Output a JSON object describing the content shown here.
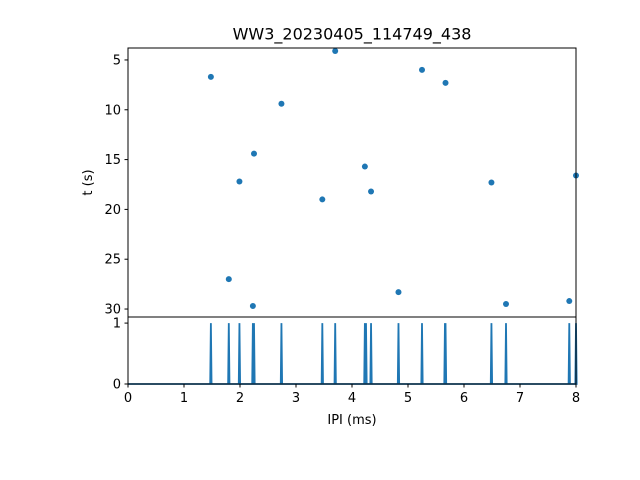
{
  "chart_data": [
    {
      "type": "scatter",
      "title": "WW3_20230405_114749_438",
      "xlabel": "",
      "ylabel": "t (s)",
      "xlim": [
        0,
        8
      ],
      "ylim": [
        30.8,
        3.8
      ],
      "y_inverted": true,
      "yticks": [
        5,
        10,
        15,
        20,
        25,
        30
      ],
      "color": "#1f77b4",
      "points": [
        {
          "x": 1.48,
          "y": 6.7
        },
        {
          "x": 3.7,
          "y": 4.1
        },
        {
          "x": 5.25,
          "y": 6.0
        },
        {
          "x": 5.67,
          "y": 7.3
        },
        {
          "x": 2.74,
          "y": 9.4
        },
        {
          "x": 2.25,
          "y": 14.4
        },
        {
          "x": 4.23,
          "y": 15.7
        },
        {
          "x": 1.99,
          "y": 17.2
        },
        {
          "x": 6.49,
          "y": 17.3
        },
        {
          "x": 8.0,
          "y": 16.6
        },
        {
          "x": 4.34,
          "y": 18.2
        },
        {
          "x": 3.47,
          "y": 19.0
        },
        {
          "x": 1.8,
          "y": 27.0
        },
        {
          "x": 4.83,
          "y": 28.3
        },
        {
          "x": 2.23,
          "y": 29.7
        },
        {
          "x": 6.75,
          "y": 29.5
        },
        {
          "x": 7.88,
          "y": 29.2
        }
      ]
    },
    {
      "type": "line",
      "title": "",
      "xlabel": "IPI (ms)",
      "ylabel": "",
      "xlim": [
        0,
        8
      ],
      "ylim": [
        0,
        1.1
      ],
      "xticks": [
        0,
        1,
        2,
        3,
        4,
        5,
        6,
        7,
        8
      ],
      "yticks": [
        0,
        1
      ],
      "color": "#1f77b4",
      "spikes": [
        1.48,
        1.8,
        1.99,
        2.23,
        2.25,
        2.74,
        3.47,
        3.7,
        4.23,
        4.25,
        4.34,
        4.83,
        5.25,
        5.66,
        5.67,
        6.49,
        6.75,
        7.88,
        8.0
      ],
      "baseline": 0,
      "spike_height": 1
    }
  ]
}
